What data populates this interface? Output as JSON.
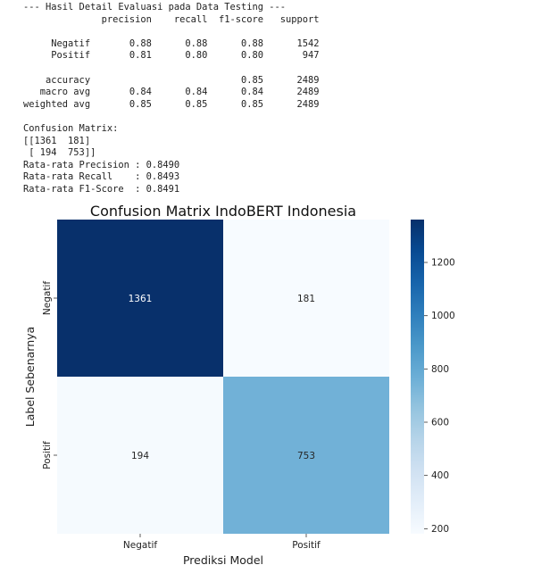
{
  "report": {
    "header": "--- Hasil Detail Evaluasi pada Data Testing ---",
    "columns": [
      "precision",
      "recall",
      "f1-score",
      "support"
    ],
    "rows": [
      {
        "label": "Negatif",
        "precision": "0.88",
        "recall": "0.88",
        "f1": "0.88",
        "support": "1542"
      },
      {
        "label": "Positif",
        "precision": "0.81",
        "recall": "0.80",
        "f1": "0.80",
        "support": "947"
      }
    ],
    "summary": [
      {
        "label": "accuracy",
        "precision": "",
        "recall": "",
        "f1": "0.85",
        "support": "2489"
      },
      {
        "label": "macro avg",
        "precision": "0.84",
        "recall": "0.84",
        "f1": "0.84",
        "support": "2489"
      },
      {
        "label": "weighted avg",
        "precision": "0.85",
        "recall": "0.85",
        "f1": "0.85",
        "support": "2489"
      }
    ],
    "cm_title": "Confusion Matrix:",
    "cm_line1": "[[1361  181]",
    "cm_line2": " [ 194  753]]",
    "avg_precision": "Rata-rata Precision : 0.8490",
    "avg_recall": "Rata-rata Recall    : 0.8493",
    "avg_f1": "Rata-rata F1-Score  : 0.8491"
  },
  "chart_data": {
    "type": "heatmap",
    "title": "Confusion Matrix IndoBERT Indonesia",
    "xlabel": "Prediksi Model",
    "ylabel": "Label Sebenarnya",
    "x_categories": [
      "Negatif",
      "Positif"
    ],
    "y_categories": [
      "Negatif",
      "Positif"
    ],
    "values": [
      [
        1361,
        181
      ],
      [
        194,
        753
      ]
    ],
    "colormap": "Blues",
    "colorbar": {
      "min": 181,
      "max": 1361,
      "ticks": [
        200,
        400,
        600,
        800,
        1000,
        1200
      ]
    },
    "colors": {
      "low": "#f7fbff",
      "high": "#08306b"
    }
  }
}
